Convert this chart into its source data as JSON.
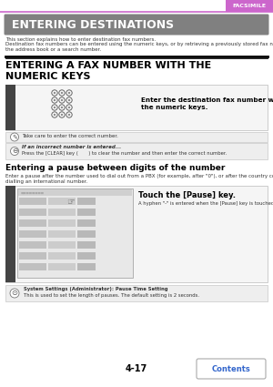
{
  "page_number": "4-17",
  "tab_label": "FACSIMILE",
  "tab_color": "#cc66cc",
  "tab_text_color": "#ffffff",
  "main_title": "ENTERING DESTINATIONS",
  "main_title_bg": "#808080",
  "main_title_color": "#ffffff",
  "body_text1": "This section explains how to enter destination fax numbers.",
  "body_text2": "Destination fax numbers can be entered using the numeric keys, or by retrieving a previously stored fax number using\nthe address book or a search number.",
  "section_title_line1": "ENTERING A FAX NUMBER WITH THE",
  "section_title_line2": "NUMERIC KEYS",
  "step1_instruction": "Enter the destination fax number with\nthe numeric keys.",
  "note1_text": "Take care to enter the correct number.",
  "note2_title": "If an incorrect number is entered...",
  "note2_text": "Press the [CLEAR] key (       ) to clear the number and then enter the correct number.",
  "subsection_title": "Entering a pause between digits of the number",
  "subsection_body1": "Enter a pause after the number used to dial out from a PBX (for example, after \"0\"), or after the country code when",
  "subsection_body2": "dialling an international number.",
  "step2_instruction": "Touch the [Pause] key.",
  "step2_sub": "A hyphen \"-\" is entered when the [Pause] key is touched once.",
  "system_note_title": "System Settings (Administrator): Pause Time Setting",
  "system_note_text": "This is used to set the length of pauses. The default setting is 2 seconds.",
  "contents_button_text": "Contents",
  "contents_button_color": "#3366cc",
  "bg_color": "#ffffff",
  "border_color": "#bbbbbb",
  "note_bg": "#eeeeee",
  "dark_bar_color": "#444444",
  "step_box_bg": "#f5f5f5"
}
